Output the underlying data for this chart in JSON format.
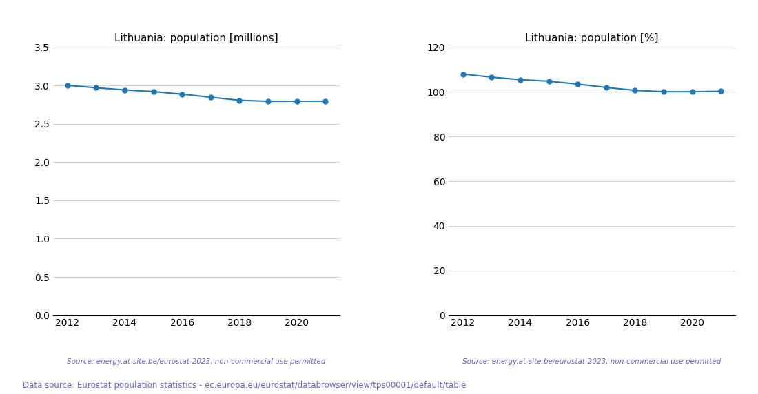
{
  "years": [
    2012,
    2013,
    2014,
    2015,
    2016,
    2017,
    2018,
    2019,
    2020,
    2021
  ],
  "population_millions": [
    3.003,
    2.971,
    2.943,
    2.921,
    2.888,
    2.847,
    2.808,
    2.794,
    2.795,
    2.796
  ],
  "population_percent": [
    108.0,
    106.6,
    105.5,
    104.8,
    103.5,
    102.0,
    100.7,
    100.1,
    100.1,
    100.3
  ],
  "title_left": "Lithuania: population [millions]",
  "title_right": "Lithuania: population [%]",
  "source_text": "Source: energy.at-site.be/eurostat-2023, non-commercial use permitted",
  "footer_text": "Data source: Eurostat population statistics - ec.europa.eu/eurostat/databrowser/view/tps00001/default/table",
  "line_color": "#1f77b4",
  "source_color": "#6666cc",
  "footer_color": "#6666cc",
  "ylim_left": [
    0.0,
    3.5
  ],
  "ylim_right": [
    0,
    120
  ],
  "yticks_left": [
    0.0,
    0.5,
    1.0,
    1.5,
    2.0,
    2.5,
    3.0,
    3.5
  ],
  "yticks_right": [
    0,
    20,
    40,
    60,
    80,
    100,
    120
  ],
  "xlim": [
    2011.5,
    2021.5
  ],
  "xticks": [
    2012,
    2014,
    2016,
    2018,
    2020
  ]
}
